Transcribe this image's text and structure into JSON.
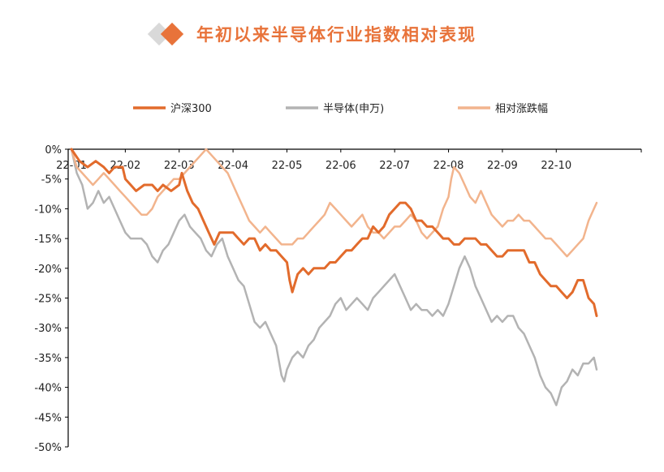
{
  "header": {
    "title": "年初以来半导体行业指数相对表现",
    "icon_left": "diamond-gray-icon",
    "icon_right": "diamond-orange-icon"
  },
  "chart_data": {
    "type": "line",
    "title": "年初以来半导体行业指数相对表现",
    "xlabel": "",
    "ylabel": "",
    "ylim": [
      -50,
      0
    ],
    "yticks": [
      "0%",
      "-5%",
      "-10%",
      "-15%",
      "-20%",
      "-25%",
      "-30%",
      "-35%",
      "-40%",
      "-45%",
      "-50%"
    ],
    "ytick_values": [
      0,
      -5,
      -10,
      -15,
      -20,
      -25,
      -30,
      -35,
      -40,
      -45,
      -50
    ],
    "xlim": [
      0,
      10
    ],
    "xticks": [
      "22-01",
      "22-02",
      "22-03",
      "22-04",
      "22-05",
      "22-06",
      "22-07",
      "22-08",
      "22-09",
      "22-10"
    ],
    "xtick_values": [
      0,
      1,
      2,
      3,
      4,
      5,
      6,
      7,
      8,
      9
    ],
    "legend_position": "top",
    "grid": false,
    "series": [
      {
        "name": "沪深300",
        "color": "#e26b2c",
        "stroke_width": 3,
        "points": [
          [
            0,
            0
          ],
          [
            0.15,
            -2
          ],
          [
            0.3,
            -3
          ],
          [
            0.45,
            -2
          ],
          [
            0.6,
            -3
          ],
          [
            0.7,
            -4
          ],
          [
            0.8,
            -3
          ],
          [
            0.95,
            -3
          ],
          [
            1.0,
            -5
          ],
          [
            1.1,
            -6
          ],
          [
            1.2,
            -7
          ],
          [
            1.35,
            -6
          ],
          [
            1.5,
            -6
          ],
          [
            1.6,
            -7
          ],
          [
            1.7,
            -6
          ],
          [
            1.85,
            -7
          ],
          [
            2.0,
            -6
          ],
          [
            2.05,
            -4
          ],
          [
            2.15,
            -7
          ],
          [
            2.25,
            -9
          ],
          [
            2.35,
            -10
          ],
          [
            2.45,
            -12
          ],
          [
            2.55,
            -14
          ],
          [
            2.65,
            -16
          ],
          [
            2.75,
            -14
          ],
          [
            2.85,
            -14
          ],
          [
            3.0,
            -14
          ],
          [
            3.1,
            -15
          ],
          [
            3.2,
            -16
          ],
          [
            3.3,
            -15
          ],
          [
            3.4,
            -15
          ],
          [
            3.5,
            -17
          ],
          [
            3.6,
            -16
          ],
          [
            3.7,
            -17
          ],
          [
            3.8,
            -17
          ],
          [
            3.9,
            -18
          ],
          [
            4.0,
            -19
          ],
          [
            4.05,
            -22
          ],
          [
            4.1,
            -24
          ],
          [
            4.2,
            -21
          ],
          [
            4.3,
            -20
          ],
          [
            4.4,
            -21
          ],
          [
            4.5,
            -20
          ],
          [
            4.6,
            -20
          ],
          [
            4.7,
            -20
          ],
          [
            4.8,
            -19
          ],
          [
            4.9,
            -19
          ],
          [
            5.0,
            -18
          ],
          [
            5.1,
            -17
          ],
          [
            5.2,
            -17
          ],
          [
            5.3,
            -16
          ],
          [
            5.4,
            -15
          ],
          [
            5.5,
            -15
          ],
          [
            5.6,
            -13
          ],
          [
            5.7,
            -14
          ],
          [
            5.8,
            -13
          ],
          [
            5.9,
            -11
          ],
          [
            6.0,
            -10
          ],
          [
            6.1,
            -9
          ],
          [
            6.2,
            -9
          ],
          [
            6.3,
            -10
          ],
          [
            6.4,
            -12
          ],
          [
            6.5,
            -12
          ],
          [
            6.6,
            -13
          ],
          [
            6.7,
            -13
          ],
          [
            6.8,
            -14
          ],
          [
            6.9,
            -15
          ],
          [
            7.0,
            -15
          ],
          [
            7.1,
            -16
          ],
          [
            7.2,
            -16
          ],
          [
            7.3,
            -15
          ],
          [
            7.4,
            -15
          ],
          [
            7.5,
            -15
          ],
          [
            7.6,
            -16
          ],
          [
            7.7,
            -16
          ],
          [
            7.8,
            -17
          ],
          [
            7.9,
            -18
          ],
          [
            8.0,
            -18
          ],
          [
            8.1,
            -17
          ],
          [
            8.2,
            -17
          ],
          [
            8.3,
            -17
          ],
          [
            8.4,
            -17
          ],
          [
            8.5,
            -19
          ],
          [
            8.6,
            -19
          ],
          [
            8.7,
            -21
          ],
          [
            8.8,
            -22
          ],
          [
            8.9,
            -23
          ],
          [
            9.0,
            -23
          ],
          [
            9.1,
            -24
          ],
          [
            9.2,
            -25
          ],
          [
            9.3,
            -24
          ],
          [
            9.4,
            -22
          ],
          [
            9.5,
            -22
          ],
          [
            9.6,
            -25
          ],
          [
            9.7,
            -26
          ],
          [
            9.75,
            -28
          ]
        ]
      },
      {
        "name": "半导体(申万)",
        "color": "#b3b3b3",
        "stroke_width": 2.5,
        "points": [
          [
            0,
            0
          ],
          [
            0.1,
            -4
          ],
          [
            0.2,
            -6
          ],
          [
            0.3,
            -10
          ],
          [
            0.4,
            -9
          ],
          [
            0.5,
            -7
          ],
          [
            0.6,
            -9
          ],
          [
            0.7,
            -8
          ],
          [
            0.8,
            -10
          ],
          [
            0.9,
            -12
          ],
          [
            1.0,
            -14
          ],
          [
            1.1,
            -15
          ],
          [
            1.2,
            -15
          ],
          [
            1.3,
            -15
          ],
          [
            1.4,
            -16
          ],
          [
            1.5,
            -18
          ],
          [
            1.6,
            -19
          ],
          [
            1.7,
            -17
          ],
          [
            1.8,
            -16
          ],
          [
            1.9,
            -14
          ],
          [
            2.0,
            -12
          ],
          [
            2.1,
            -11
          ],
          [
            2.2,
            -13
          ],
          [
            2.3,
            -14
          ],
          [
            2.4,
            -15
          ],
          [
            2.5,
            -17
          ],
          [
            2.6,
            -18
          ],
          [
            2.7,
            -16
          ],
          [
            2.8,
            -15
          ],
          [
            2.9,
            -18
          ],
          [
            3.0,
            -20
          ],
          [
            3.1,
            -22
          ],
          [
            3.2,
            -23
          ],
          [
            3.3,
            -26
          ],
          [
            3.4,
            -29
          ],
          [
            3.5,
            -30
          ],
          [
            3.6,
            -29
          ],
          [
            3.7,
            -31
          ],
          [
            3.8,
            -33
          ],
          [
            3.9,
            -38
          ],
          [
            3.95,
            -39
          ],
          [
            4.0,
            -37
          ],
          [
            4.1,
            -35
          ],
          [
            4.2,
            -34
          ],
          [
            4.3,
            -35
          ],
          [
            4.4,
            -33
          ],
          [
            4.5,
            -32
          ],
          [
            4.6,
            -30
          ],
          [
            4.7,
            -29
          ],
          [
            4.8,
            -28
          ],
          [
            4.9,
            -26
          ],
          [
            5.0,
            -25
          ],
          [
            5.1,
            -27
          ],
          [
            5.2,
            -26
          ],
          [
            5.3,
            -25
          ],
          [
            5.4,
            -26
          ],
          [
            5.5,
            -27
          ],
          [
            5.6,
            -25
          ],
          [
            5.7,
            -24
          ],
          [
            5.8,
            -23
          ],
          [
            5.9,
            -22
          ],
          [
            6.0,
            -21
          ],
          [
            6.1,
            -23
          ],
          [
            6.2,
            -25
          ],
          [
            6.3,
            -27
          ],
          [
            6.4,
            -26
          ],
          [
            6.5,
            -27
          ],
          [
            6.6,
            -27
          ],
          [
            6.7,
            -28
          ],
          [
            6.8,
            -27
          ],
          [
            6.9,
            -28
          ],
          [
            7.0,
            -26
          ],
          [
            7.1,
            -23
          ],
          [
            7.2,
            -20
          ],
          [
            7.3,
            -18
          ],
          [
            7.4,
            -20
          ],
          [
            7.5,
            -23
          ],
          [
            7.6,
            -25
          ],
          [
            7.7,
            -27
          ],
          [
            7.8,
            -29
          ],
          [
            7.9,
            -28
          ],
          [
            8.0,
            -29
          ],
          [
            8.1,
            -28
          ],
          [
            8.2,
            -28
          ],
          [
            8.3,
            -30
          ],
          [
            8.4,
            -31
          ],
          [
            8.5,
            -33
          ],
          [
            8.6,
            -35
          ],
          [
            8.7,
            -38
          ],
          [
            8.8,
            -40
          ],
          [
            8.9,
            -41
          ],
          [
            9.0,
            -43
          ],
          [
            9.1,
            -40
          ],
          [
            9.2,
            -39
          ],
          [
            9.3,
            -37
          ],
          [
            9.4,
            -38
          ],
          [
            9.5,
            -36
          ],
          [
            9.6,
            -36
          ],
          [
            9.7,
            -35
          ],
          [
            9.75,
            -37
          ]
        ]
      },
      {
        "name": "相对涨跌幅",
        "color": "#f2b48d",
        "stroke_width": 2.5,
        "points": [
          [
            0,
            0
          ],
          [
            0.1,
            -3
          ],
          [
            0.2,
            -4
          ],
          [
            0.3,
            -5
          ],
          [
            0.4,
            -6
          ],
          [
            0.5,
            -5
          ],
          [
            0.6,
            -4
          ],
          [
            0.7,
            -5
          ],
          [
            0.8,
            -6
          ],
          [
            0.9,
            -7
          ],
          [
            1.0,
            -8
          ],
          [
            1.1,
            -9
          ],
          [
            1.2,
            -10
          ],
          [
            1.3,
            -11
          ],
          [
            1.4,
            -11
          ],
          [
            1.5,
            -10
          ],
          [
            1.6,
            -8
          ],
          [
            1.7,
            -7
          ],
          [
            1.8,
            -6
          ],
          [
            1.9,
            -5
          ],
          [
            2.0,
            -5
          ],
          [
            2.1,
            -4
          ],
          [
            2.2,
            -3
          ],
          [
            2.3,
            -2
          ],
          [
            2.4,
            -1
          ],
          [
            2.5,
            0
          ],
          [
            2.6,
            -1
          ],
          [
            2.7,
            -2
          ],
          [
            2.8,
            -3
          ],
          [
            2.9,
            -4
          ],
          [
            3.0,
            -6
          ],
          [
            3.1,
            -8
          ],
          [
            3.2,
            -10
          ],
          [
            3.3,
            -12
          ],
          [
            3.4,
            -13
          ],
          [
            3.5,
            -14
          ],
          [
            3.6,
            -13
          ],
          [
            3.7,
            -14
          ],
          [
            3.8,
            -15
          ],
          [
            3.9,
            -16
          ],
          [
            4.0,
            -16
          ],
          [
            4.1,
            -16
          ],
          [
            4.2,
            -15
          ],
          [
            4.3,
            -15
          ],
          [
            4.4,
            -14
          ],
          [
            4.5,
            -13
          ],
          [
            4.6,
            -12
          ],
          [
            4.7,
            -11
          ],
          [
            4.8,
            -9
          ],
          [
            4.9,
            -10
          ],
          [
            5.0,
            -11
          ],
          [
            5.1,
            -12
          ],
          [
            5.2,
            -13
          ],
          [
            5.3,
            -12
          ],
          [
            5.4,
            -11
          ],
          [
            5.5,
            -13
          ],
          [
            5.6,
            -14
          ],
          [
            5.7,
            -14
          ],
          [
            5.8,
            -15
          ],
          [
            5.9,
            -14
          ],
          [
            6.0,
            -13
          ],
          [
            6.1,
            -13
          ],
          [
            6.2,
            -12
          ],
          [
            6.3,
            -11
          ],
          [
            6.4,
            -12
          ],
          [
            6.5,
            -14
          ],
          [
            6.6,
            -15
          ],
          [
            6.7,
            -14
          ],
          [
            6.8,
            -13
          ],
          [
            6.9,
            -10
          ],
          [
            7.0,
            -8
          ],
          [
            7.05,
            -5
          ],
          [
            7.1,
            -3
          ],
          [
            7.2,
            -4
          ],
          [
            7.3,
            -6
          ],
          [
            7.4,
            -8
          ],
          [
            7.5,
            -9
          ],
          [
            7.6,
            -7
          ],
          [
            7.7,
            -9
          ],
          [
            7.8,
            -11
          ],
          [
            7.9,
            -12
          ],
          [
            8.0,
            -13
          ],
          [
            8.1,
            -12
          ],
          [
            8.2,
            -12
          ],
          [
            8.3,
            -11
          ],
          [
            8.4,
            -12
          ],
          [
            8.5,
            -12
          ],
          [
            8.6,
            -13
          ],
          [
            8.7,
            -14
          ],
          [
            8.8,
            -15
          ],
          [
            8.9,
            -15
          ],
          [
            9.0,
            -16
          ],
          [
            9.1,
            -17
          ],
          [
            9.2,
            -18
          ],
          [
            9.3,
            -17
          ],
          [
            9.4,
            -16
          ],
          [
            9.5,
            -15
          ],
          [
            9.6,
            -12
          ],
          [
            9.7,
            -10
          ],
          [
            9.75,
            -9
          ]
        ]
      }
    ]
  }
}
